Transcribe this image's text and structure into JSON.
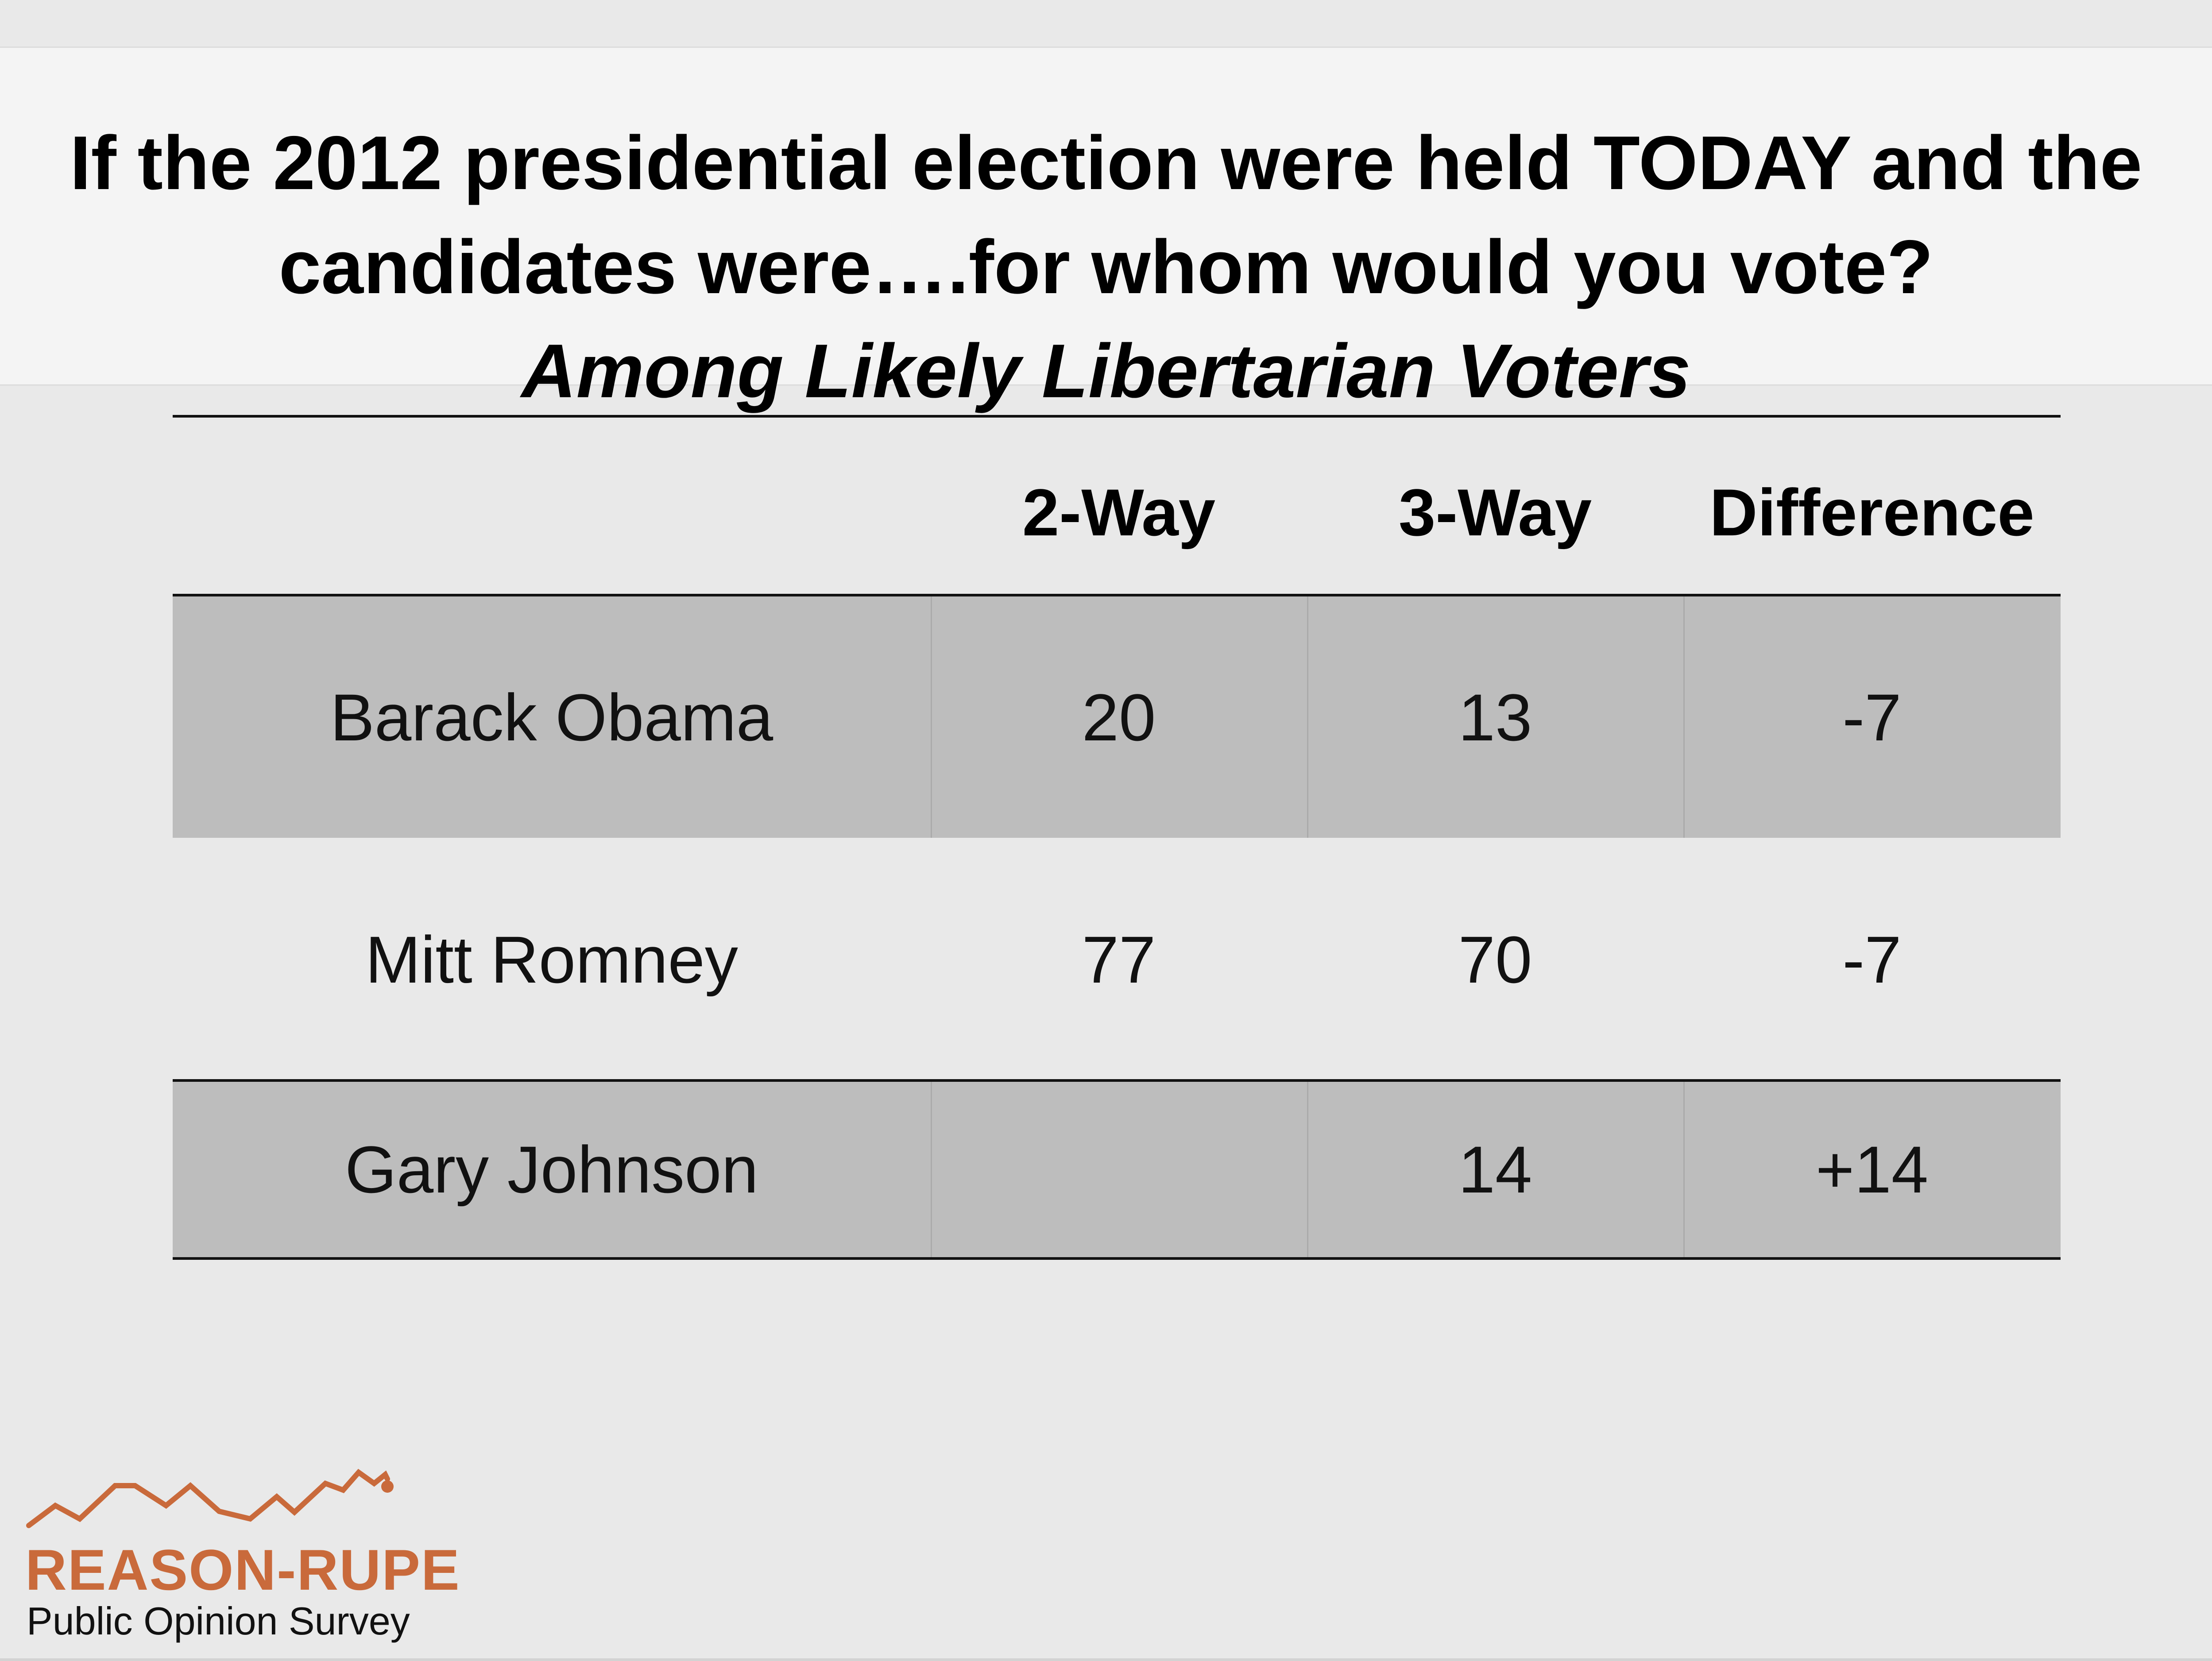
{
  "title": {
    "line1": "If the 2012 presidential election were held TODAY and the",
    "line2": "candidates were….for whom would you vote?",
    "subtitle": "Among Likely Libertarian Voters"
  },
  "chart_data": {
    "type": "table",
    "columns": [
      "",
      "2-Way",
      "3-Way",
      "Difference"
    ],
    "rows": [
      {
        "name": "Barack Obama",
        "two_way": "20",
        "three_way": "13",
        "difference": "-7"
      },
      {
        "name": "Mitt Romney",
        "two_way": "77",
        "three_way": "70",
        "difference": "-7"
      },
      {
        "name": "Gary Johnson",
        "two_way": "",
        "three_way": "14",
        "difference": "+14"
      }
    ]
  },
  "logo": {
    "brand": "REASON-RUPE",
    "tagline": "Public Opinion Survey",
    "icon": "trend-line-icon",
    "accent_color": "#c96a3b"
  },
  "colors": {
    "background": "#e9e9e9",
    "title_band": "#f4f4f4",
    "shaded_row": "#bdbdbd"
  }
}
